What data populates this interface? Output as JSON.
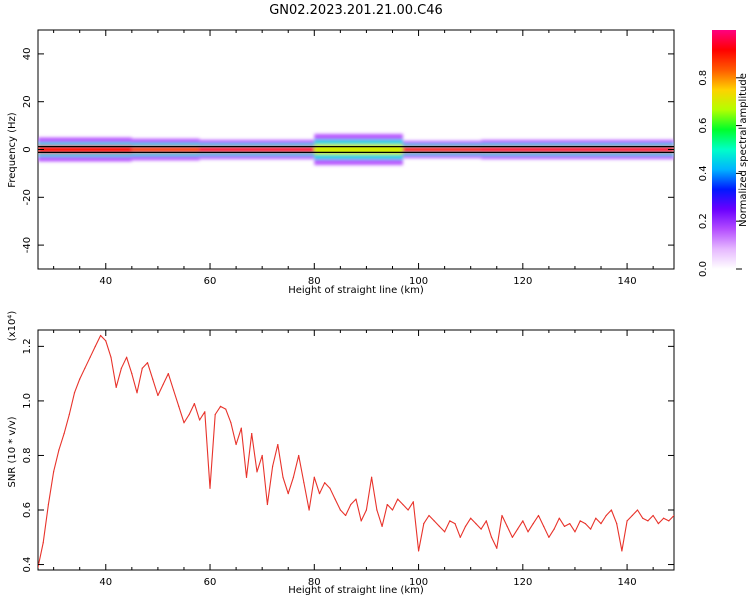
{
  "title": "GN02.2023.201.21.00.C46",
  "chart_data": [
    {
      "type": "heatmap",
      "xlabel": "Height of straight line (km)",
      "ylabel": "Frequency (Hz)",
      "xlim": [
        27,
        149
      ],
      "ylim": [
        -50,
        50
      ],
      "xticks": [
        40,
        60,
        80,
        100,
        120,
        140
      ],
      "yticks": [
        -40,
        -20,
        0,
        20,
        40
      ],
      "band": {
        "center_hz": 0,
        "reference_lines_hz": [
          -1.2,
          1.2
        ],
        "segments": [
          {
            "x": [
              27,
              45
            ],
            "halfwidth_hz": [
              1.6,
              3,
              5
            ],
            "peak": 0.9
          },
          {
            "x": [
              45,
              58
            ],
            "halfwidth_hz": [
              1.4,
              2.8,
              4.5
            ],
            "peak": 0.85
          },
          {
            "x": [
              58,
              80
            ],
            "halfwidth_hz": [
              1.3,
              2.6,
              4
            ],
            "peak": 0.95
          },
          {
            "x": [
              80,
              97
            ],
            "halfwidth_hz": [
              2.2,
              4.2,
              6.5
            ],
            "peak": 0.7
          },
          {
            "x": [
              97,
              112
            ],
            "halfwidth_hz": [
              1.2,
              2.4,
              3.6
            ],
            "peak": 0.9
          },
          {
            "x": [
              112,
              149
            ],
            "halfwidth_hz": [
              1.3,
              2.6,
              4
            ],
            "peak": 0.95
          }
        ]
      },
      "colorbar": {
        "label": "Normalized spectral amplitude",
        "range": [
          0,
          1
        ],
        "ticks": [
          0.0,
          0.2,
          0.4,
          0.6,
          0.8
        ],
        "colors": [
          "#ffffff",
          "#e6b8ff",
          "#b44dff",
          "#6a00ff",
          "#0019ff",
          "#00b4ff",
          "#00ffc8",
          "#00ff2a",
          "#b4ff00",
          "#ffd200",
          "#ff5a00",
          "#ff0000",
          "#ff0080"
        ]
      }
    },
    {
      "type": "line",
      "xlabel": "Height of straight line (km)",
      "ylabel": "SNR (10 * v/v)",
      "y_multiplier": "(x10⁴)",
      "xlim": [
        27,
        149
      ],
      "ylim": [
        0.38,
        1.26
      ],
      "xticks": [
        40,
        60,
        80,
        100,
        120,
        140
      ],
      "yticks": [
        0.4,
        0.6,
        0.8,
        1.0,
        1.2
      ],
      "color": "#e8332b",
      "x": [
        27,
        28,
        29,
        30,
        31,
        32,
        33,
        34,
        35,
        36,
        37,
        38,
        39,
        40,
        41,
        42,
        43,
        44,
        45,
        46,
        47,
        48,
        49,
        50,
        51,
        52,
        53,
        54,
        55,
        56,
        57,
        58,
        59,
        60,
        61,
        62,
        63,
        64,
        65,
        66,
        67,
        68,
        69,
        70,
        71,
        72,
        73,
        74,
        75,
        76,
        77,
        78,
        79,
        80,
        81,
        82,
        83,
        84,
        85,
        86,
        87,
        88,
        89,
        90,
        91,
        92,
        93,
        94,
        95,
        96,
        97,
        98,
        99,
        100,
        101,
        102,
        103,
        104,
        105,
        106,
        107,
        108,
        109,
        110,
        111,
        112,
        113,
        114,
        115,
        116,
        117,
        118,
        119,
        120,
        121,
        122,
        123,
        124,
        125,
        126,
        127,
        128,
        129,
        130,
        131,
        132,
        133,
        134,
        135,
        136,
        137,
        138,
        139,
        140,
        141,
        142,
        143,
        144,
        145,
        146,
        147,
        148,
        149
      ],
      "y": [
        0.39,
        0.48,
        0.62,
        0.74,
        0.82,
        0.88,
        0.95,
        1.03,
        1.08,
        1.12,
        1.16,
        1.2,
        1.24,
        1.22,
        1.16,
        1.05,
        1.12,
        1.16,
        1.1,
        1.03,
        1.12,
        1.14,
        1.08,
        1.02,
        1.06,
        1.1,
        1.04,
        0.98,
        0.92,
        0.95,
        0.99,
        0.93,
        0.96,
        0.68,
        0.95,
        0.98,
        0.97,
        0.92,
        0.84,
        0.9,
        0.72,
        0.88,
        0.74,
        0.8,
        0.62,
        0.76,
        0.84,
        0.72,
        0.66,
        0.72,
        0.8,
        0.7,
        0.6,
        0.72,
        0.66,
        0.7,
        0.68,
        0.64,
        0.6,
        0.58,
        0.62,
        0.64,
        0.56,
        0.6,
        0.72,
        0.6,
        0.54,
        0.62,
        0.6,
        0.64,
        0.62,
        0.6,
        0.63,
        0.45,
        0.55,
        0.58,
        0.56,
        0.54,
        0.52,
        0.56,
        0.55,
        0.5,
        0.54,
        0.57,
        0.55,
        0.53,
        0.56,
        0.5,
        0.46,
        0.58,
        0.54,
        0.5,
        0.53,
        0.56,
        0.52,
        0.55,
        0.58,
        0.54,
        0.5,
        0.53,
        0.57,
        0.54,
        0.55,
        0.52,
        0.56,
        0.55,
        0.53,
        0.57,
        0.55,
        0.58,
        0.6,
        0.55,
        0.45,
        0.56,
        0.58,
        0.6,
        0.57,
        0.56,
        0.58,
        0.55,
        0.57,
        0.56,
        0.58
      ]
    }
  ]
}
